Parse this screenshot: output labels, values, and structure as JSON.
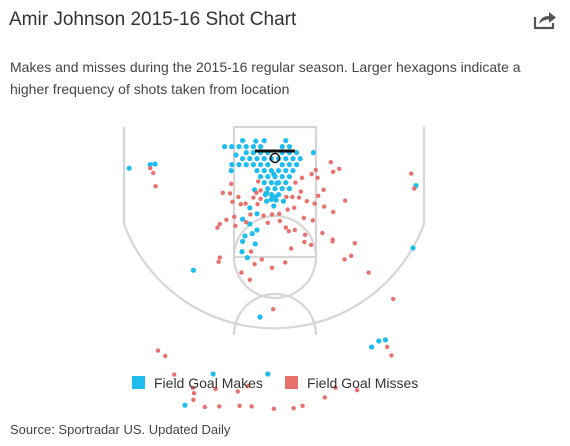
{
  "header": {
    "title": "Amir Johnson 2015-16 Shot Chart",
    "share_icon": "share-icon"
  },
  "subtitle": "Makes and misses during the 2015-16 regular season. Larger hexagons indicate a higher frequency of shots taken from location",
  "legend": {
    "makes_label": "Field Goal Makes",
    "misses_label": "Field Goal Misses",
    "makes_color": "#1fbcef",
    "misses_color": "#e8706d"
  },
  "source": "Source: Sportradar US. Updated Daily",
  "chart_data": {
    "type": "scatter",
    "coordinate_units": "feet (x from basket center, y from baseline)",
    "series": [
      {
        "name": "Field Goal Makes",
        "color": "#1fbcef",
        "points": [
          [
            -0.6,
            6.1
          ],
          [
            0.6,
            6.1
          ],
          [
            -1.2,
            5.1
          ],
          [
            0,
            5.1
          ],
          [
            1.2,
            5.1
          ],
          [
            -0.6,
            4.1
          ],
          [
            0.6,
            4.1
          ],
          [
            -1.8,
            4.1
          ],
          [
            1.8,
            4.1
          ],
          [
            -1.2,
            3.1
          ],
          [
            0,
            3.1
          ],
          [
            1.2,
            3.1
          ],
          [
            -2.4,
            3.1
          ],
          [
            2.4,
            3.1
          ],
          [
            -0.6,
            2.1
          ],
          [
            0.6,
            2.1
          ],
          [
            -1.8,
            2.1
          ],
          [
            1.8,
            2.1
          ],
          [
            -3,
            2.1
          ],
          [
            3,
            2.1
          ],
          [
            -1.2,
            1.1
          ],
          [
            1.2,
            1.1
          ],
          [
            -2.4,
            1.1
          ],
          [
            2.4,
            1.1
          ],
          [
            -3.6,
            1.1
          ],
          [
            -4.8,
            1.1
          ],
          [
            -6,
            1.1
          ],
          [
            -7.2,
            1.1
          ],
          [
            3.6,
            1.1
          ],
          [
            -1.8,
            0.1
          ],
          [
            1.8,
            0.1
          ],
          [
            -3,
            0.1
          ],
          [
            3,
            0.1
          ],
          [
            -4.2,
            0.1
          ],
          [
            -5.4,
            0.1
          ],
          [
            4.2,
            0.1
          ],
          [
            -0.6,
            0.1
          ],
          [
            0.6,
            0.1
          ],
          [
            -2.4,
            -0.9
          ],
          [
            2.4,
            -0.9
          ],
          [
            -3.6,
            -0.9
          ],
          [
            -4.8,
            -0.9
          ],
          [
            3.6,
            -0.9
          ],
          [
            -1.2,
            -0.9
          ],
          [
            1.2,
            -0.9
          ],
          [
            -2.4,
            -1.9
          ],
          [
            -3.6,
            -1.9
          ],
          [
            -4.8,
            -1.9
          ],
          [
            -6,
            -1.9
          ],
          [
            -7.2,
            -1.9
          ],
          [
            -8.4,
            -1.9
          ],
          [
            1.2,
            -1.9
          ],
          [
            2.4,
            -1.9
          ],
          [
            -1.8,
            -2.9
          ],
          [
            1.8,
            -2.9
          ],
          [
            -5.4,
            -2.9
          ],
          [
            -3.2,
            -2.8
          ],
          [
            -6.5,
            -0.5
          ],
          [
            -7.3,
            2.1
          ],
          [
            6.4,
            -0.9
          ],
          [
            -3.4,
            5.3
          ],
          [
            2.4,
            5.1
          ],
          [
            0.2,
            7
          ],
          [
            -1.6,
            6.1
          ],
          [
            0,
            6.5
          ],
          [
            -0.2,
            8
          ],
          [
            -1.4,
            7.2
          ],
          [
            1.4,
            7.2
          ],
          [
            -4.2,
            8.3
          ],
          [
            -3,
            9.3
          ],
          [
            -5.4,
            10.2
          ],
          [
            -4.2,
            11
          ],
          [
            -3,
            12
          ],
          [
            -3.8,
            12.6
          ],
          [
            -5,
            13
          ],
          [
            -5.4,
            13.9
          ],
          [
            -3.3,
            14.3
          ],
          [
            -5.5,
            15.6
          ],
          [
            -4.6,
            16.6
          ],
          [
            -13.6,
            18.7
          ],
          [
            -2.5,
            26.5
          ],
          [
            -10.3,
            36
          ],
          [
            -1.2,
            36
          ],
          [
            -20.8,
            1.1
          ],
          [
            -20,
            1
          ],
          [
            23.5,
            4.6
          ],
          [
            23,
            15
          ],
          [
            -24.3,
            1.7
          ],
          [
            16.1,
            31.5
          ],
          [
            17.3,
            30.5
          ],
          [
            18.4,
            30.3
          ],
          [
            -15,
            41.2
          ],
          [
            -0.6,
            6.9
          ],
          [
            -1.4,
            5.8
          ],
          [
            0.3,
            4.2
          ],
          [
            -0.2,
            2.7
          ]
        ]
      },
      {
        "name": "Field Goal Misses",
        "color": "#e8706d",
        "points": [
          [
            -2.8,
            3.9
          ],
          [
            3.4,
            4.1
          ],
          [
            4.3,
            5.6
          ],
          [
            4.5,
            3.3
          ],
          [
            -7.3,
            4.3
          ],
          [
            -7.5,
            5.9
          ],
          [
            -8.7,
            5.8
          ],
          [
            -6.1,
            6.5
          ],
          [
            -4.9,
            7.6
          ],
          [
            -5.7,
            7.7
          ],
          [
            -3.6,
            6.6
          ],
          [
            -3.1,
            5.8
          ],
          [
            -2.4,
            6.8
          ],
          [
            1.9,
            6.5
          ],
          [
            2.9,
            6.5
          ],
          [
            4,
            6.6
          ],
          [
            5.3,
            7.2
          ],
          [
            6.6,
            7.6
          ],
          [
            7.2,
            6.3
          ],
          [
            8.1,
            5.3
          ],
          [
            7.1,
            3.3
          ],
          [
            6.1,
            2.7
          ],
          [
            6.8,
            2
          ],
          [
            9.7,
            2.3
          ],
          [
            10.7,
            1.8
          ],
          [
            9.3,
            0.7
          ],
          [
            -2.9,
            7.7
          ],
          [
            -4.1,
            9.4
          ],
          [
            -1.9,
            9.6
          ],
          [
            -0.5,
            9.4
          ],
          [
            0.7,
            9.3
          ],
          [
            2.1,
            8.6
          ],
          [
            3.2,
            8.3
          ],
          [
            -6.8,
            9.8
          ],
          [
            -8.1,
            10.3
          ],
          [
            -9.2,
            11
          ],
          [
            -9.6,
            11.6
          ],
          [
            -6.6,
            11.3
          ],
          [
            -4.8,
            10.7
          ],
          [
            0.8,
            10.5
          ],
          [
            1.8,
            11.6
          ],
          [
            4.8,
            10
          ],
          [
            6.3,
            10.4
          ],
          [
            3.3,
            12
          ],
          [
            5,
            12.8
          ],
          [
            7.9,
            12.5
          ],
          [
            9.6,
            13.6
          ],
          [
            4.9,
            14
          ],
          [
            6,
            14.5
          ],
          [
            2.7,
            15.1
          ],
          [
            -4,
            15.6
          ],
          [
            -2.2,
            16.9
          ],
          [
            -9.4,
            17.3
          ],
          [
            -3.4,
            17.7
          ],
          [
            -0.5,
            18.3
          ],
          [
            1.7,
            17.4
          ],
          [
            9.6,
            13.9
          ],
          [
            13.3,
            14.2
          ],
          [
            12.7,
            16.3
          ],
          [
            11.6,
            16.9
          ],
          [
            -5.6,
            19.1
          ],
          [
            -9.2,
            16.6
          ],
          [
            -4.2,
            20.3
          ],
          [
            -0.3,
            25.2
          ],
          [
            -20.8,
            1.7
          ],
          [
            -20.3,
            2.5
          ],
          [
            -19.9,
            4.7
          ],
          [
            -7.1,
            7.3
          ],
          [
            8.2,
            8.1
          ],
          [
            9.7,
            9
          ],
          [
            11.7,
            7.1
          ],
          [
            22.7,
            2.6
          ],
          [
            23.2,
            5.1
          ],
          [
            15.6,
            19.1
          ],
          [
            19.7,
            23.5
          ],
          [
            -19.5,
            32.1
          ],
          [
            -18.3,
            33
          ],
          [
            -16.8,
            36.1
          ],
          [
            -13.7,
            38.3
          ],
          [
            -13.6,
            40.3
          ],
          [
            -11.7,
            41.5
          ],
          [
            -9.3,
            41.4
          ],
          [
            -5.9,
            41.3
          ],
          [
            -6.2,
            38.9
          ],
          [
            -9.9,
            38.5
          ],
          [
            -3.9,
            41.4
          ],
          [
            -0.2,
            41.8
          ],
          [
            3.1,
            41.7
          ],
          [
            4.6,
            41.3
          ],
          [
            8.3,
            39.9
          ],
          [
            10.1,
            38.3
          ],
          [
            13.7,
            38.7
          ],
          [
            19.4,
            32.9
          ],
          [
            18.7,
            31.5
          ],
          [
            -13.5,
            39.2
          ],
          [
            -4.5,
            38
          ],
          [
            -2.4,
            5.4
          ],
          [
            2.3,
            12.2
          ],
          [
            -1.2,
            10.8
          ]
        ]
      }
    ],
    "legend_position": "bottom",
    "grid": false
  }
}
